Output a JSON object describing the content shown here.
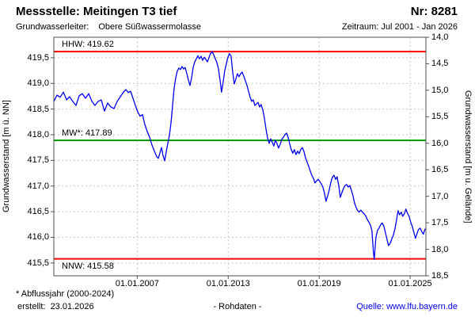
{
  "header": {
    "title": "Messstelle: Meitingen T3 tief",
    "station_no": "Nr: 8281",
    "aquifer_label": "Grundwasserleiter:",
    "aquifer_value": "Obere Süßwassermolasse",
    "period": "Zeitraum: Jul 2001 - Jan 2026"
  },
  "footer": {
    "footnote": "* Abflussjahr (2000-2024)",
    "created": "erstellt:  23.01.2026",
    "data_type": "- Rohdaten -",
    "source": "Quelle: www.lfu.bayern.de"
  },
  "colors": {
    "series": "#0000ee",
    "hhw_nnw": "#ff0000",
    "mw": "#009900",
    "grid": "#c6c6c6",
    "border": "#505050",
    "link": "#0000ee"
  },
  "chart_data": {
    "type": "line",
    "title": "Grundwasserstand Messstelle Meitingen T3 tief (Rohdaten)",
    "grid": true,
    "legend": false,
    "ylabel_left": "Grundwasserstand [m ü. NN]",
    "ylabel_right": "Grundwasserstand [m u. Gelände]",
    "x_range": [
      2001.5,
      2026.04
    ],
    "y_left_range": [
      415.25,
      419.9
    ],
    "y_right_range": [
      14.0,
      18.5
    ],
    "x_ticks": [
      {
        "t": 2007.0,
        "label": "01.01.2007"
      },
      {
        "t": 2013.0,
        "label": "01.01.2013"
      },
      {
        "t": 2019.0,
        "label": "01.01.2019"
      },
      {
        "t": 2025.0,
        "label": "01.01.2025"
      }
    ],
    "y_left_ticks": [
      {
        "v": 419.5,
        "label": "419,5"
      },
      {
        "v": 419.0,
        "label": "419,0"
      },
      {
        "v": 418.5,
        "label": "418,5"
      },
      {
        "v": 418.0,
        "label": "418,0"
      },
      {
        "v": 417.5,
        "label": "417,5"
      },
      {
        "v": 417.0,
        "label": "417,0"
      },
      {
        "v": 416.5,
        "label": "416,5"
      },
      {
        "v": 416.0,
        "label": "416,0"
      },
      {
        "v": 415.5,
        "label": "415,5"
      }
    ],
    "y_right_ticks": [
      {
        "v": 14.0,
        "label": "14,0"
      },
      {
        "v": 14.5,
        "label": "14,5"
      },
      {
        "v": 15.0,
        "label": "15,0"
      },
      {
        "v": 15.5,
        "label": "15,5"
      },
      {
        "v": 16.0,
        "label": "16,0"
      },
      {
        "v": 16.5,
        "label": "16,5"
      },
      {
        "v": 17.0,
        "label": "17,0"
      },
      {
        "v": 17.5,
        "label": "17,5"
      },
      {
        "v": 18.0,
        "label": "18,0"
      },
      {
        "v": 18.5,
        "label": "18,5"
      }
    ],
    "reference_lines": [
      {
        "name": "HHW",
        "label": "HHW: 419.62",
        "value": 419.62,
        "color": "#ff0000",
        "label_pos": "above"
      },
      {
        "name": "MW",
        "label": "MW*: 417.89",
        "value": 417.89,
        "color": "#009900",
        "label_pos": "above"
      },
      {
        "name": "NNW",
        "label": "NNW: 415.58",
        "value": 415.58,
        "color": "#ff0000",
        "label_pos": "below"
      }
    ],
    "series": [
      {
        "name": "Grundwasserstand (Rohdaten)",
        "color": "#0000ee",
        "points": [
          [
            2001.5,
            418.65
          ],
          [
            2001.71,
            418.77
          ],
          [
            2001.92,
            418.73
          ],
          [
            2002.13,
            418.83
          ],
          [
            2002.34,
            418.68
          ],
          [
            2002.54,
            418.74
          ],
          [
            2002.75,
            418.65
          ],
          [
            2002.96,
            418.57
          ],
          [
            2003.17,
            418.76
          ],
          [
            2003.38,
            418.8
          ],
          [
            2003.59,
            418.71
          ],
          [
            2003.8,
            418.8
          ],
          [
            2004.01,
            418.65
          ],
          [
            2004.21,
            418.57
          ],
          [
            2004.42,
            418.65
          ],
          [
            2004.63,
            418.68
          ],
          [
            2004.84,
            418.46
          ],
          [
            2005.05,
            418.62
          ],
          [
            2005.26,
            418.54
          ],
          [
            2005.47,
            418.51
          ],
          [
            2005.68,
            418.65
          ],
          [
            2005.88,
            418.74
          ],
          [
            2006.09,
            418.83
          ],
          [
            2006.25,
            418.88
          ],
          [
            2006.41,
            418.82
          ],
          [
            2006.56,
            418.85
          ],
          [
            2006.72,
            418.71
          ],
          [
            2006.88,
            418.57
          ],
          [
            2007.03,
            418.45
          ],
          [
            2007.19,
            418.36
          ],
          [
            2007.35,
            418.39
          ],
          [
            2007.5,
            418.2
          ],
          [
            2007.66,
            418.06
          ],
          [
            2007.82,
            417.95
          ],
          [
            2007.97,
            417.8
          ],
          [
            2008.13,
            417.68
          ],
          [
            2008.29,
            417.57
          ],
          [
            2008.39,
            417.54
          ],
          [
            2008.49,
            417.64
          ],
          [
            2008.6,
            417.75
          ],
          [
            2008.7,
            417.6
          ],
          [
            2008.81,
            417.49
          ],
          [
            2008.91,
            417.66
          ],
          [
            2009.02,
            417.83
          ],
          [
            2009.12,
            417.98
          ],
          [
            2009.23,
            418.23
          ],
          [
            2009.33,
            418.57
          ],
          [
            2009.43,
            418.9
          ],
          [
            2009.54,
            419.11
          ],
          [
            2009.64,
            419.24
          ],
          [
            2009.75,
            419.3
          ],
          [
            2009.85,
            419.27
          ],
          [
            2009.96,
            419.33
          ],
          [
            2010.06,
            419.28
          ],
          [
            2010.16,
            419.31
          ],
          [
            2010.27,
            419.19
          ],
          [
            2010.37,
            419.07
          ],
          [
            2010.48,
            418.96
          ],
          [
            2010.58,
            419.1
          ],
          [
            2010.69,
            419.31
          ],
          [
            2010.79,
            419.42
          ],
          [
            2010.9,
            419.48
          ],
          [
            2011.0,
            419.54
          ],
          [
            2011.1,
            419.48
          ],
          [
            2011.21,
            419.53
          ],
          [
            2011.31,
            419.45
          ],
          [
            2011.42,
            419.51
          ],
          [
            2011.52,
            419.47
          ],
          [
            2011.63,
            419.42
          ],
          [
            2011.73,
            419.5
          ],
          [
            2011.83,
            419.58
          ],
          [
            2011.94,
            419.62
          ],
          [
            2012.04,
            419.56
          ],
          [
            2012.15,
            419.48
          ],
          [
            2012.25,
            419.41
          ],
          [
            2012.36,
            419.28
          ],
          [
            2012.46,
            419.07
          ],
          [
            2012.56,
            418.83
          ],
          [
            2012.67,
            419.03
          ],
          [
            2012.77,
            419.24
          ],
          [
            2012.88,
            419.39
          ],
          [
            2012.98,
            419.51
          ],
          [
            2013.08,
            419.58
          ],
          [
            2013.19,
            419.53
          ],
          [
            2013.29,
            419.24
          ],
          [
            2013.4,
            418.99
          ],
          [
            2013.5,
            419.08
          ],
          [
            2013.61,
            419.19
          ],
          [
            2013.71,
            419.13
          ],
          [
            2013.82,
            419.19
          ],
          [
            2013.92,
            419.22
          ],
          [
            2014.03,
            419.14
          ],
          [
            2014.13,
            419.05
          ],
          [
            2014.23,
            418.97
          ],
          [
            2014.34,
            418.85
          ],
          [
            2014.44,
            418.74
          ],
          [
            2014.55,
            418.65
          ],
          [
            2014.65,
            418.68
          ],
          [
            2014.76,
            418.57
          ],
          [
            2014.86,
            418.6
          ],
          [
            2014.97,
            418.63
          ],
          [
            2015.07,
            418.54
          ],
          [
            2015.17,
            418.59
          ],
          [
            2015.28,
            418.49
          ],
          [
            2015.38,
            418.34
          ],
          [
            2015.49,
            418.12
          ],
          [
            2015.59,
            417.94
          ],
          [
            2015.7,
            417.83
          ],
          [
            2015.8,
            417.92
          ],
          [
            2015.91,
            417.85
          ],
          [
            2016.01,
            417.78
          ],
          [
            2016.11,
            417.89
          ],
          [
            2016.22,
            417.83
          ],
          [
            2016.32,
            417.74
          ],
          [
            2016.43,
            417.81
          ],
          [
            2016.53,
            417.91
          ],
          [
            2016.64,
            417.95
          ],
          [
            2016.74,
            418.0
          ],
          [
            2016.85,
            418.03
          ],
          [
            2016.95,
            417.95
          ],
          [
            2017.05,
            417.83
          ],
          [
            2017.16,
            417.71
          ],
          [
            2017.26,
            417.64
          ],
          [
            2017.37,
            417.71
          ],
          [
            2017.47,
            417.61
          ],
          [
            2017.58,
            417.68
          ],
          [
            2017.68,
            417.63
          ],
          [
            2017.78,
            417.71
          ],
          [
            2017.89,
            417.75
          ],
          [
            2017.99,
            417.68
          ],
          [
            2018.1,
            417.55
          ],
          [
            2018.2,
            417.47
          ],
          [
            2018.31,
            417.38
          ],
          [
            2018.41,
            417.29
          ],
          [
            2018.51,
            417.21
          ],
          [
            2018.62,
            417.15
          ],
          [
            2018.72,
            417.06
          ],
          [
            2018.83,
            417.1
          ],
          [
            2018.93,
            417.13
          ],
          [
            2019.04,
            417.09
          ],
          [
            2019.14,
            417.04
          ],
          [
            2019.24,
            416.98
          ],
          [
            2019.35,
            416.86
          ],
          [
            2019.45,
            416.7
          ],
          [
            2019.56,
            416.81
          ],
          [
            2019.66,
            416.92
          ],
          [
            2019.77,
            417.07
          ],
          [
            2019.87,
            417.17
          ],
          [
            2019.98,
            417.21
          ],
          [
            2020.08,
            417.13
          ],
          [
            2020.18,
            417.18
          ],
          [
            2020.29,
            417.01
          ],
          [
            2020.39,
            416.78
          ],
          [
            2020.5,
            416.87
          ],
          [
            2020.6,
            416.95
          ],
          [
            2020.71,
            417.01
          ],
          [
            2020.81,
            417.03
          ],
          [
            2020.92,
            416.98
          ],
          [
            2021.02,
            417.01
          ],
          [
            2021.12,
            416.92
          ],
          [
            2021.23,
            416.81
          ],
          [
            2021.33,
            416.67
          ],
          [
            2021.44,
            416.58
          ],
          [
            2021.54,
            416.52
          ],
          [
            2021.64,
            416.49
          ],
          [
            2021.75,
            416.53
          ],
          [
            2021.85,
            416.49
          ],
          [
            2021.96,
            416.46
          ],
          [
            2022.06,
            416.42
          ],
          [
            2022.17,
            416.35
          ],
          [
            2022.27,
            416.3
          ],
          [
            2022.38,
            416.24
          ],
          [
            2022.48,
            416.13
          ],
          [
            2022.53,
            415.91
          ],
          [
            2022.58,
            415.71
          ],
          [
            2022.63,
            415.57
          ],
          [
            2022.69,
            415.79
          ],
          [
            2022.74,
            415.99
          ],
          [
            2022.84,
            416.13
          ],
          [
            2022.95,
            416.18
          ],
          [
            2023.05,
            416.24
          ],
          [
            2023.16,
            416.28
          ],
          [
            2023.26,
            416.22
          ],
          [
            2023.36,
            416.1
          ],
          [
            2023.47,
            415.96
          ],
          [
            2023.57,
            415.84
          ],
          [
            2023.68,
            415.88
          ],
          [
            2023.78,
            415.96
          ],
          [
            2023.89,
            416.04
          ],
          [
            2023.99,
            416.15
          ],
          [
            2024.09,
            416.32
          ],
          [
            2024.2,
            416.52
          ],
          [
            2024.3,
            416.44
          ],
          [
            2024.41,
            416.49
          ],
          [
            2024.51,
            416.41
          ],
          [
            2024.62,
            416.46
          ],
          [
            2024.72,
            416.55
          ],
          [
            2024.82,
            416.47
          ],
          [
            2024.93,
            416.41
          ],
          [
            2025.03,
            416.3
          ],
          [
            2025.14,
            416.21
          ],
          [
            2025.24,
            416.1
          ],
          [
            2025.35,
            415.98
          ],
          [
            2025.45,
            416.07
          ],
          [
            2025.55,
            416.15
          ],
          [
            2025.66,
            416.18
          ],
          [
            2025.76,
            416.12
          ],
          [
            2025.87,
            416.06
          ],
          [
            2025.98,
            416.16
          ]
        ]
      }
    ]
  }
}
